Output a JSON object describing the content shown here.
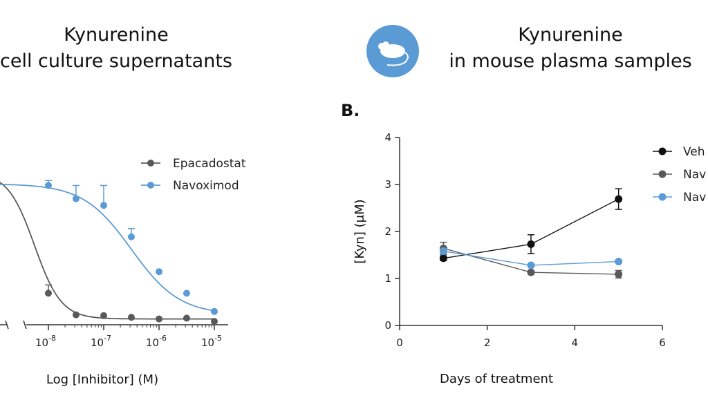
{
  "left_panel": {
    "title_line1": "Kynurenine",
    "title_line2": "cell culture supernatants"
  },
  "right_panel": {
    "panel_label": "B.",
    "title_line1": "Kynurenine",
    "title_line2": "in mouse plasma samples",
    "icon": "mouse-icon"
  },
  "colors": {
    "epacadostat": "#595959",
    "navoximod": "#5b9bd5",
    "vehicle": "#111111",
    "badge": "#5b9bd5"
  },
  "chart_data": [
    {
      "type": "scatter",
      "xlabel": "Log [Inhibitor] (M)",
      "ylabel": "",
      "x_scale": "log",
      "x_tick_labels": [
        "10-8",
        "10-7",
        "10-6",
        "10-5"
      ],
      "legend_position": "top-right",
      "series": [
        {
          "name": "Epacadostat",
          "x": [
            1e-08,
            3.16e-08,
            1e-07,
            3.16e-07,
            1e-06,
            3.16e-06,
            1e-05
          ],
          "y": [
            0.19,
            0.06,
            0.055,
            0.045,
            0.035,
            0.04,
            0.02
          ],
          "err": [
            0.05,
            0.0,
            0.0,
            0.0,
            0.0,
            0.0,
            0.0
          ]
        },
        {
          "name": "Navoximod",
          "x": [
            1e-08,
            3.16e-08,
            1e-07,
            3.16e-07,
            1e-06,
            3.16e-06,
            1e-05
          ],
          "y": [
            0.84,
            0.76,
            0.72,
            0.53,
            0.32,
            0.19,
            0.08
          ],
          "err": [
            0.03,
            0.08,
            0.12,
            0.05,
            0.0,
            0.0,
            0.0
          ]
        }
      ]
    },
    {
      "type": "line",
      "xlabel": "Days of treatment",
      "ylabel": "[Kyn] (μM)",
      "xlim": [
        0,
        6
      ],
      "ylim": [
        0,
        4
      ],
      "x_ticks": [
        0,
        2,
        4,
        6
      ],
      "y_ticks": [
        0,
        1,
        2,
        3,
        4
      ],
      "legend_position": "top-right",
      "legend_labels": [
        "Veh",
        "Nav",
        "Nav"
      ],
      "series": [
        {
          "name": "Veh",
          "x": [
            1,
            3,
            5
          ],
          "y": [
            1.43,
            1.73,
            2.69
          ],
          "err": [
            0.05,
            0.2,
            0.22
          ]
        },
        {
          "name": "Nav",
          "x": [
            1,
            3,
            5
          ],
          "y": [
            1.64,
            1.13,
            1.09
          ],
          "err": [
            0.13,
            0.04,
            0.08
          ]
        },
        {
          "name": "Nav",
          "x": [
            1,
            3,
            5
          ],
          "y": [
            1.58,
            1.28,
            1.36
          ],
          "err": [
            0.05,
            0.03,
            0.03
          ]
        }
      ]
    }
  ]
}
